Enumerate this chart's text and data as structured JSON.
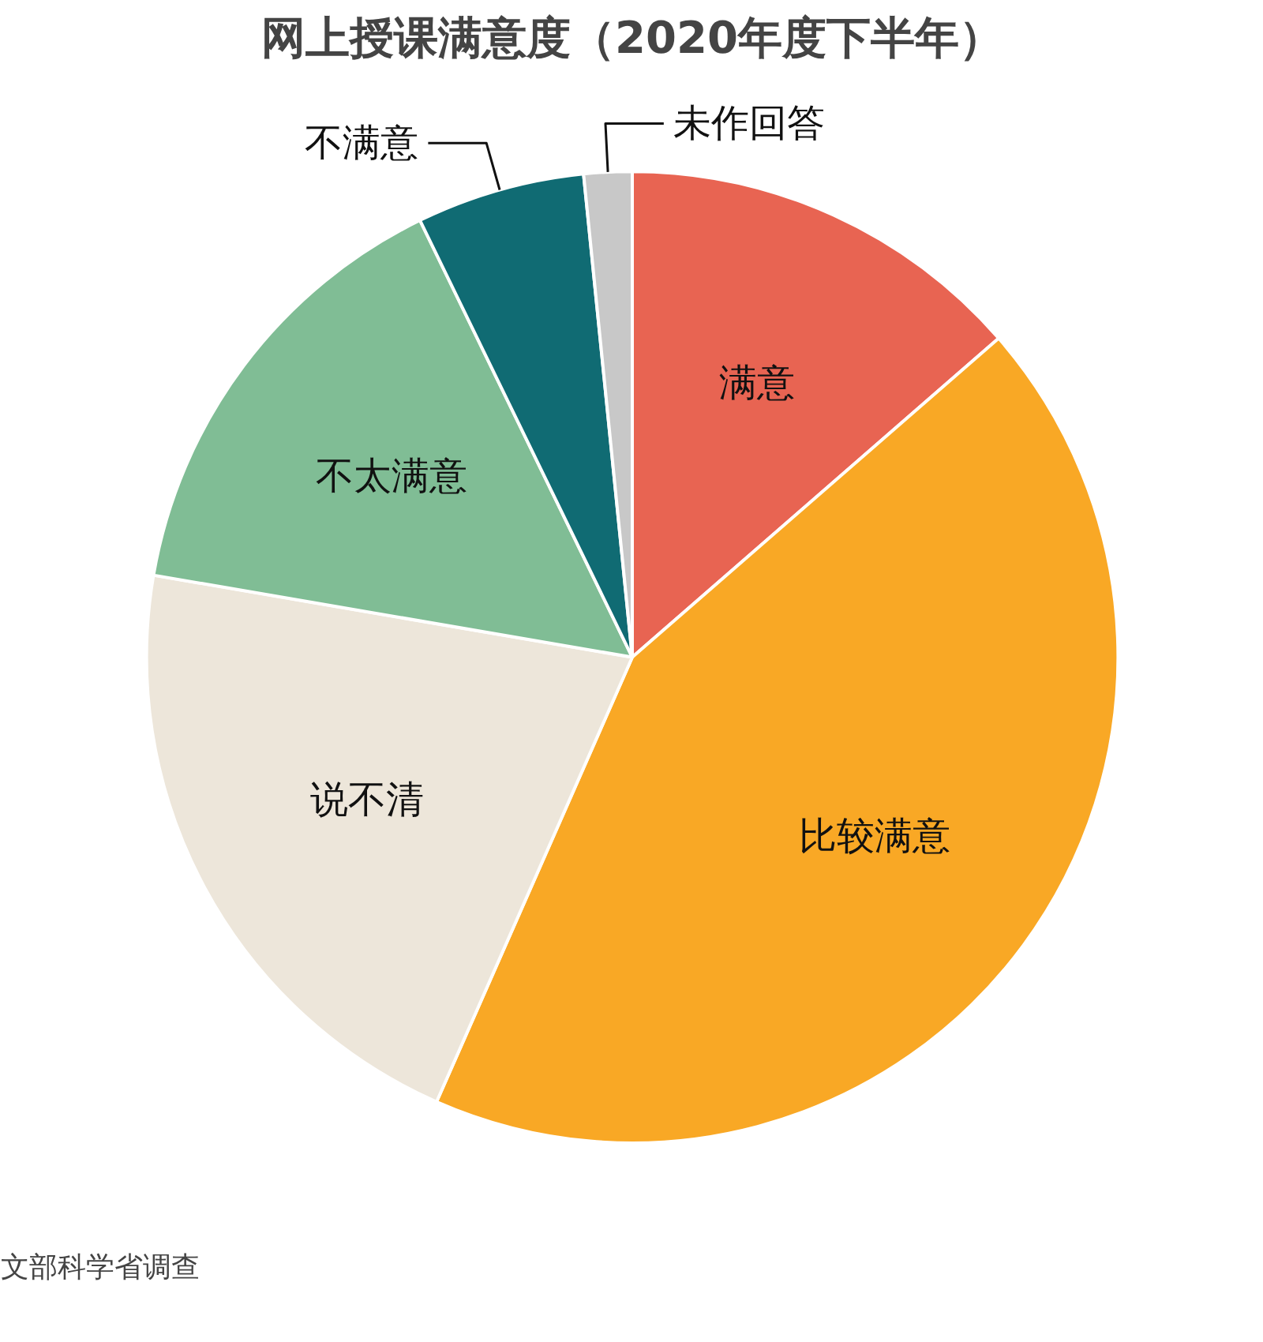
{
  "chart_data": {
    "type": "pie",
    "title": "网上授课满意度（2020年度下半年）",
    "categories": [
      "满意",
      "比较满意",
      "说不清",
      "不太满意",
      "不满意",
      "未作回答"
    ],
    "values": [
      13.6,
      43.0,
      21.1,
      15.1,
      5.6,
      1.6
    ],
    "colors": [
      "#e86452",
      "#f9a825",
      "#ede6da",
      "#80bd95",
      "#106b73",
      "#c8c8c8"
    ],
    "annotations": [
      "文部科学省调查"
    ]
  }
}
